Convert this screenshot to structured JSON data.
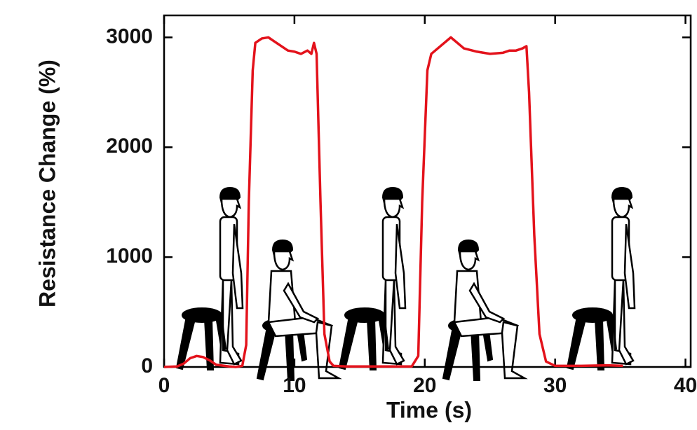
{
  "chart_data": {
    "type": "line",
    "x_label": "Time (s)",
    "y_label": "Resistance Change (%)",
    "xlim": [
      0,
      40.4
    ],
    "ylim": [
      0,
      3200
    ],
    "xticks": [
      0,
      10,
      20,
      30,
      40
    ],
    "yticks": [
      0,
      1000,
      2000,
      3000
    ],
    "series": [
      {
        "color": "#e3121b",
        "x": [
          0,
          1,
          1.5,
          2,
          2.5,
          3,
          3.5,
          4,
          5,
          5.5,
          6,
          6.3,
          6.5,
          6.8,
          7,
          7.5,
          8,
          8.5,
          9,
          9.5,
          10,
          10.5,
          11,
          11.3,
          11.5,
          11.7,
          12,
          12.3,
          12.7,
          13,
          14,
          16,
          18,
          19,
          19.5,
          19.8,
          20.2,
          20.5,
          21,
          21.5,
          22,
          22.5,
          23,
          24,
          25,
          26,
          26.5,
          27,
          27.5,
          27.8,
          28,
          28.4,
          28.8,
          29.3,
          30,
          32,
          34,
          35.2
        ],
        "values": [
          0,
          5,
          30,
          80,
          100,
          90,
          60,
          20,
          5,
          0,
          10,
          200,
          1500,
          2700,
          2950,
          2990,
          3000,
          2960,
          2920,
          2880,
          2870,
          2850,
          2880,
          2850,
          2950,
          2850,
          1500,
          300,
          50,
          10,
          5,
          5,
          5,
          5,
          100,
          1500,
          2700,
          2850,
          2900,
          2950,
          3000,
          2950,
          2900,
          2870,
          2850,
          2860,
          2880,
          2880,
          2900,
          2920,
          2500,
          1200,
          300,
          50,
          10,
          10,
          15,
          10
        ]
      }
    ]
  }
}
